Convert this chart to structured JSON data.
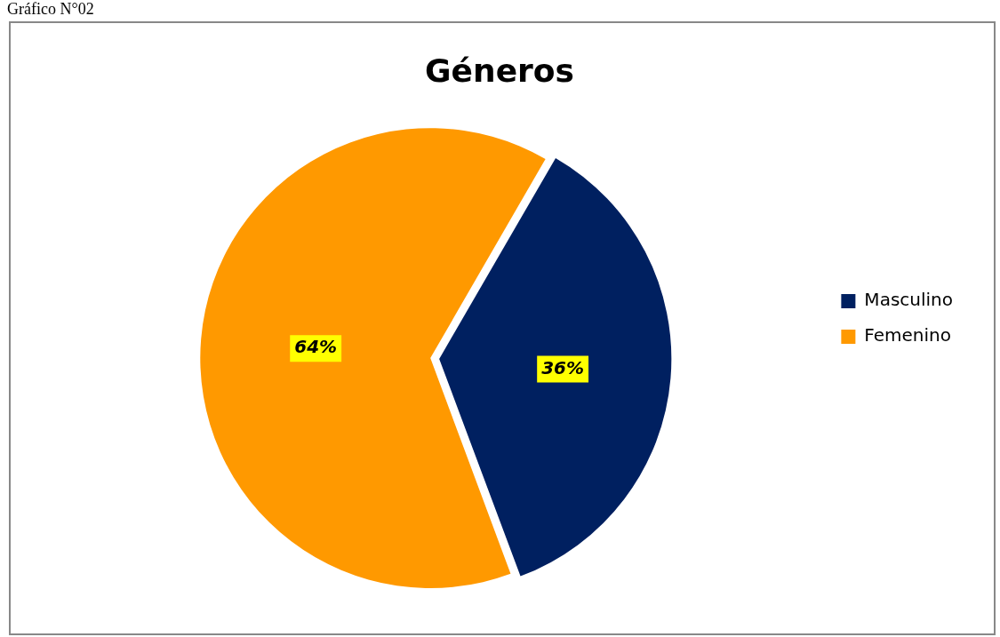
{
  "chart_data": {
    "type": "pie",
    "title": "Géneros",
    "annotations": [
      "Gráfico N°02"
    ],
    "categories": [
      "Masculino",
      "Femenino"
    ],
    "values": [
      36,
      64
    ],
    "colors": [
      "#002060",
      "#ff9900"
    ],
    "value_labels": [
      "36%",
      "64%"
    ],
    "legend": "right"
  }
}
